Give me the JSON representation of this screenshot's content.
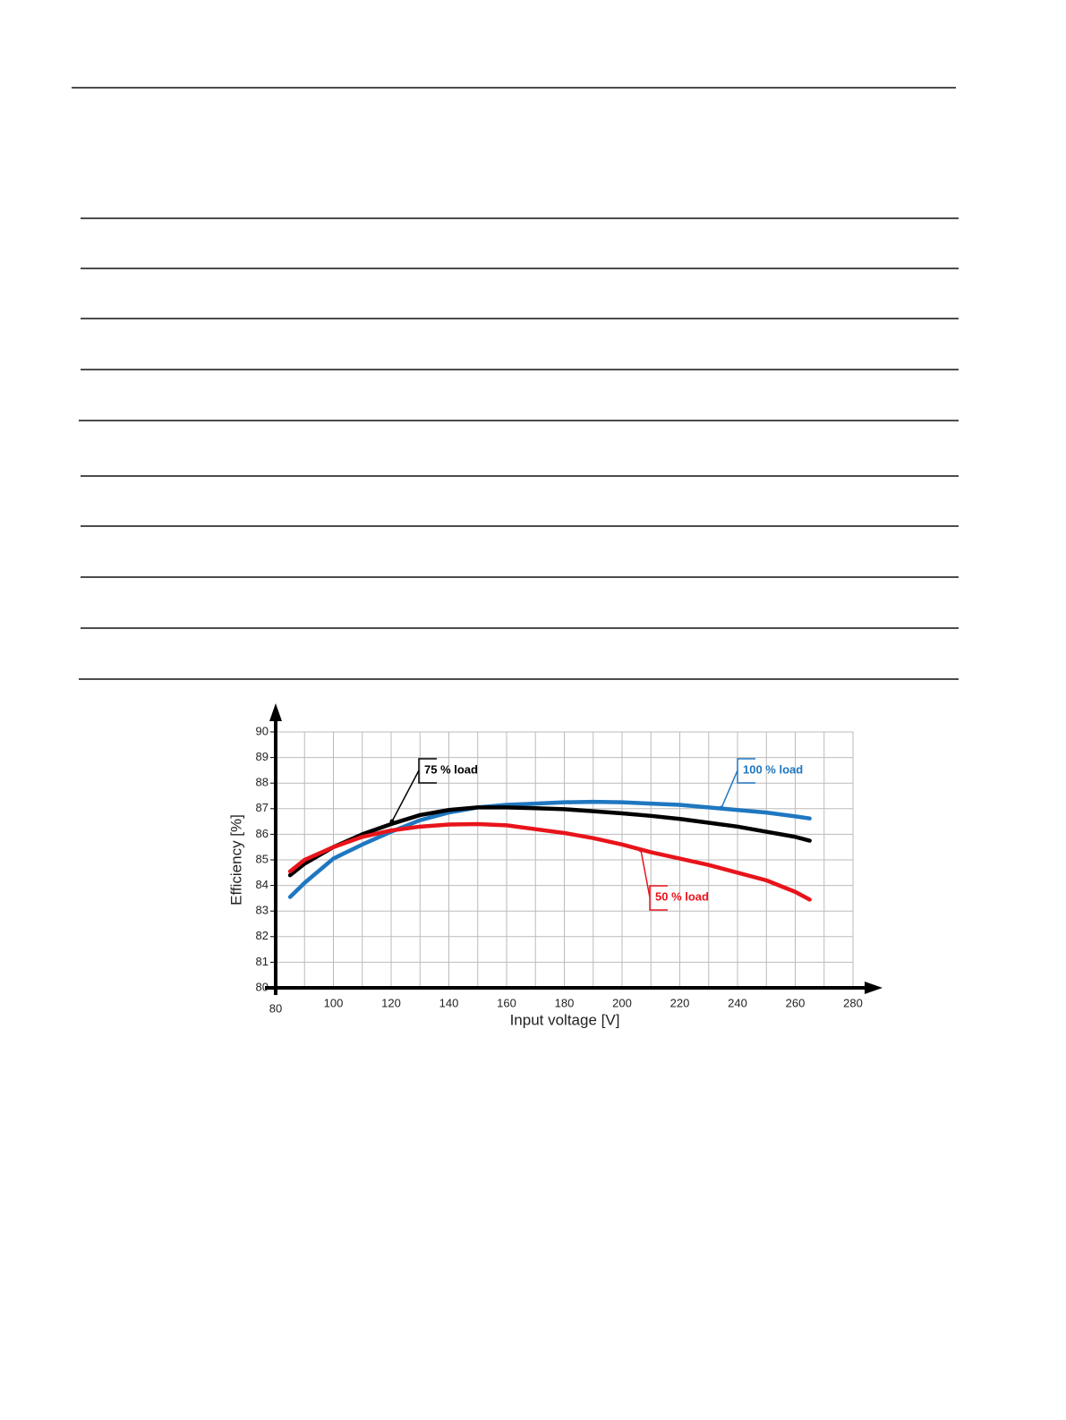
{
  "chart_data": {
    "type": "line",
    "x_label": "Input voltage [V]",
    "y_label": "Efficiency [%]",
    "x": [
      85,
      90,
      100,
      110,
      120,
      130,
      140,
      150,
      160,
      170,
      180,
      190,
      200,
      210,
      220,
      230,
      240,
      250,
      260,
      265
    ],
    "series": [
      {
        "name": "100 % load",
        "color": "#1f77c0",
        "values": [
          83.55,
          84.1,
          85.05,
          85.6,
          86.1,
          86.55,
          86.85,
          87.05,
          87.15,
          87.2,
          87.25,
          87.27,
          87.25,
          87.2,
          87.15,
          87.05,
          86.95,
          86.85,
          86.7,
          86.62
        ]
      },
      {
        "name": "75 % load",
        "color": "#000000",
        "values": [
          84.4,
          84.85,
          85.5,
          86.0,
          86.4,
          86.75,
          86.95,
          87.05,
          87.05,
          87.02,
          86.98,
          86.9,
          86.82,
          86.72,
          86.6,
          86.45,
          86.3,
          86.1,
          85.9,
          85.75
        ]
      },
      {
        "name": "50 % load",
        "color": "#e8141b",
        "values": [
          84.55,
          85.0,
          85.5,
          85.9,
          86.15,
          86.3,
          86.38,
          86.4,
          86.35,
          86.2,
          86.05,
          85.85,
          85.6,
          85.3,
          85.05,
          84.8,
          84.5,
          84.2,
          83.75,
          83.45
        ]
      }
    ],
    "xlim": [
      80,
      280
    ],
    "xticks": [
      80,
      100,
      120,
      140,
      160,
      180,
      200,
      220,
      240,
      260,
      280
    ],
    "ylim": [
      80,
      90
    ],
    "yticks": [
      80,
      81,
      82,
      83,
      84,
      85,
      86,
      87,
      88,
      89,
      90
    ],
    "grid": true
  }
}
